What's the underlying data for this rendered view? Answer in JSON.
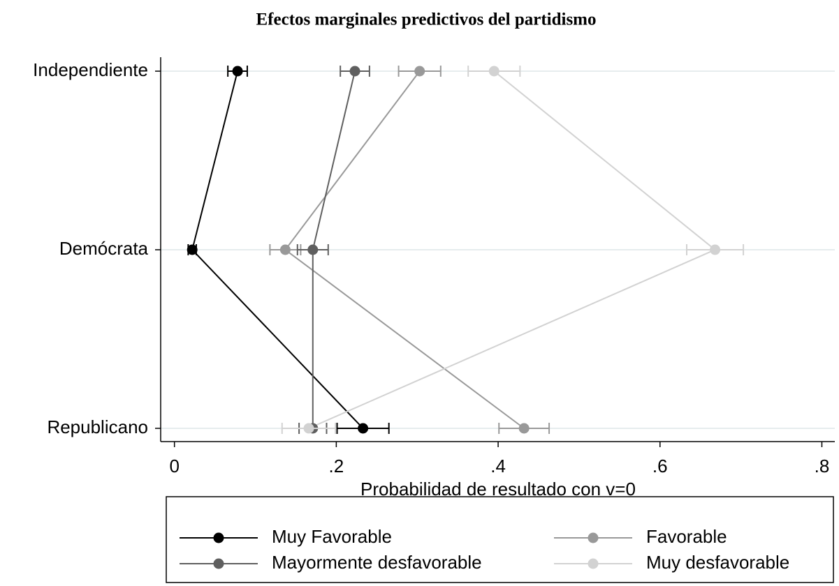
{
  "chart_data": {
    "type": "dot",
    "title": "Efectos marginales predictivos del partidismo",
    "x_label": "Probabilidad de resultado con v=0",
    "categories": [
      "Independiente",
      "Demócrata",
      "Republicano"
    ],
    "series": [
      {
        "name": "Muy Favorable",
        "color": "#000000",
        "values": [
          0.078,
          0.022,
          0.233
        ],
        "errors": [
          0.012,
          0.005,
          0.032
        ]
      },
      {
        "name": "Favorable",
        "color": "#999999",
        "values": [
          0.303,
          0.137,
          0.432
        ],
        "errors": [
          0.026,
          0.019,
          0.031
        ]
      },
      {
        "name": "Mayormente desfavorable",
        "color": "#5f5f5f",
        "values": [
          0.223,
          0.171,
          0.171
        ],
        "errors": [
          0.018,
          0.019,
          0.017
        ]
      },
      {
        "name": "Muy desfavorable",
        "color": "#d2d2d2",
        "values": [
          0.395,
          0.668,
          0.166
        ],
        "errors": [
          0.032,
          0.035,
          0.033
        ]
      }
    ],
    "xlim": [
      -0.017,
      0.816
    ],
    "xticks": [
      0,
      {
        "value": 0.2,
        "label": ".2"
      },
      {
        "value": 0.4,
        "label": ".4"
      },
      {
        "value": 0.6,
        "label": ".6"
      },
      {
        "value": 0.8,
        "label": ".8"
      }
    ],
    "grid": true
  }
}
